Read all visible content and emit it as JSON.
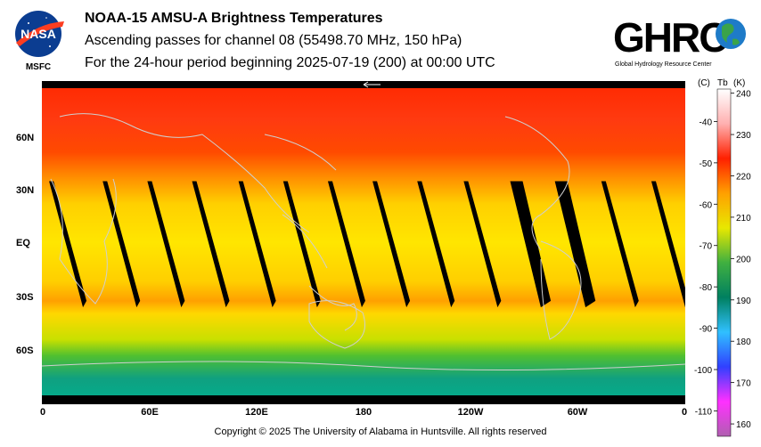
{
  "header": {
    "title": "NOAA-15 AMSU-A Brightness Temperatures",
    "subtitle": "Ascending passes for channel 08 (55498.70 MHz, 150 hPa)",
    "period": "For the 24-hour period beginning 2025-07-19 (200) at 00:00 UTC"
  },
  "logos": {
    "nasa_text": "NASA",
    "msfc_text": "MSFC",
    "ghrc_text": "GHRC",
    "ghrc_tagline": "Global Hydrology Resource Center"
  },
  "map": {
    "lat_labels": [
      "60N",
      "30N",
      "EQ",
      "30S",
      "60S"
    ],
    "lat_values": [
      60,
      30,
      0,
      -30,
      -60
    ],
    "lon_labels": [
      "0",
      "60E",
      "120E",
      "180",
      "120W",
      "60W",
      "0"
    ],
    "lon_values": [
      0,
      60,
      120,
      180,
      240,
      300,
      360
    ],
    "swath_gap_centers_lon": [
      14,
      44,
      69,
      94,
      120,
      145,
      170,
      195,
      220,
      246,
      272,
      297,
      323,
      351
    ]
  },
  "colorbar": {
    "celsius_header": "(C)",
    "tb_header": "Tb",
    "kelvin_header": "(K)",
    "celsius_ticks": [
      -40,
      -50,
      -60,
      -70,
      -80,
      -90,
      -100,
      -110
    ],
    "kelvin_ticks": [
      240,
      230,
      220,
      210,
      200,
      190,
      180,
      170,
      160
    ],
    "range_k": [
      157,
      241
    ],
    "colors": [
      "#b060b0",
      "#ff30ff",
      "#3040ff",
      "#30c0ff",
      "#008060",
      "#40b040",
      "#e8e800",
      "#ffa000",
      "#ff2000",
      "#ffb0b0",
      "#ffffff"
    ]
  },
  "footer": {
    "copyright": "Copyright © 2025 The University of Alabama in Huntsville.  All rights reserved"
  }
}
